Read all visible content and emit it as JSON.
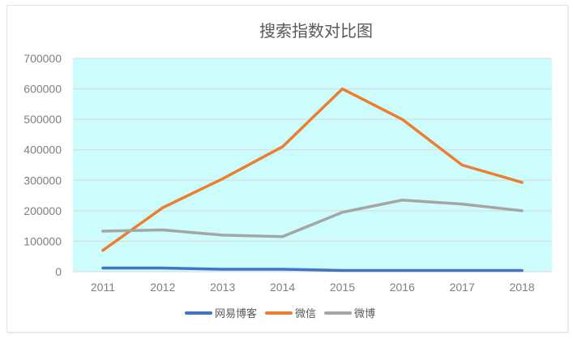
{
  "chart_data": {
    "type": "line",
    "title": "搜索指数对比图",
    "xlabel": "",
    "ylabel": "",
    "categories": [
      "2011",
      "2012",
      "2013",
      "2014",
      "2015",
      "2016",
      "2017",
      "2018"
    ],
    "yticks": [
      "0",
      "100000",
      "200000",
      "300000",
      "400000",
      "500000",
      "600000",
      "700000"
    ],
    "ylim": [
      0,
      700000
    ],
    "grid": true,
    "legend_position": "bottom",
    "plot_background": "#ccfcfc",
    "series": [
      {
        "name": "网易博客",
        "color": "#4472c4",
        "values": [
          12000,
          12000,
          8000,
          8000,
          4000,
          4000,
          4000,
          4000
        ]
      },
      {
        "name": "微信",
        "color": "#ed7d31",
        "values": [
          70000,
          210000,
          305000,
          410000,
          600000,
          500000,
          350000,
          293000
        ]
      },
      {
        "name": "微博",
        "color": "#a5a5a5",
        "values": [
          133000,
          137000,
          120000,
          115000,
          195000,
          235000,
          222000,
          200000
        ]
      }
    ]
  }
}
